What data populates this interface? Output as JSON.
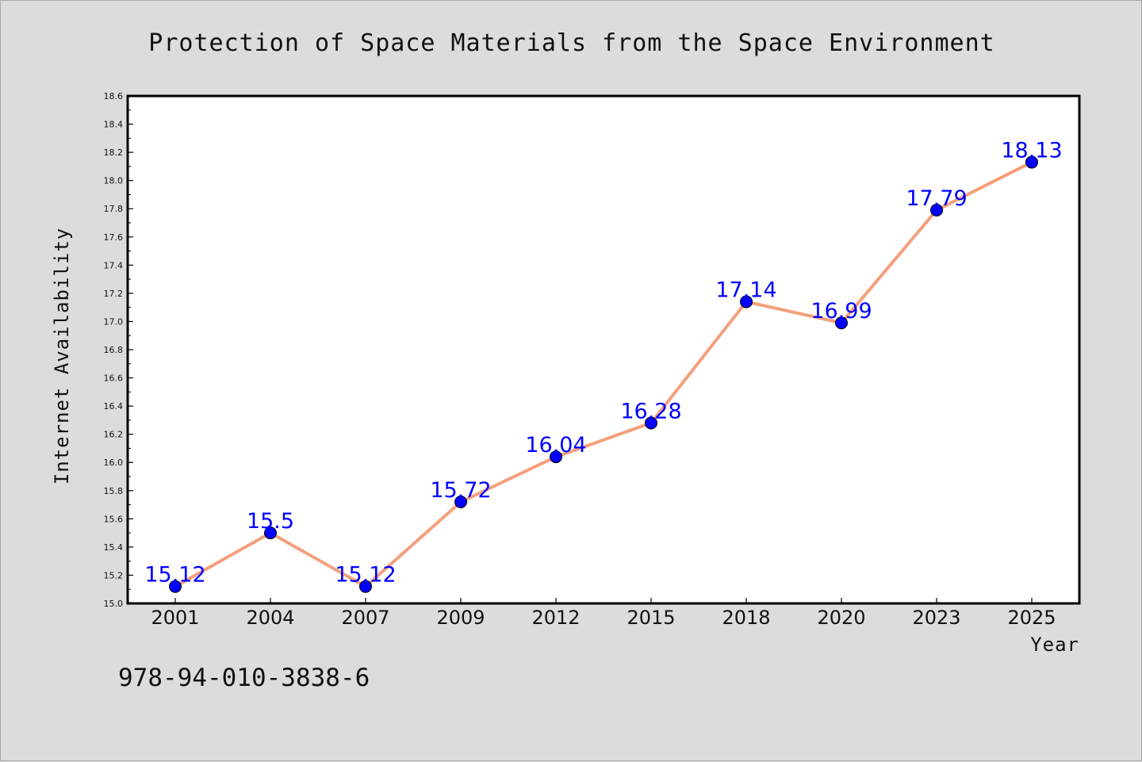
{
  "colors": {
    "background": "#dcdcdc",
    "plot_background": "#ffffff",
    "line": "#f4a07c",
    "marker": "#0000ff",
    "data_label": "#0000ff",
    "text": "#111111"
  },
  "footer": {
    "isbn": "978-94-010-3838-6"
  },
  "chart_data": {
    "type": "line",
    "title": "Protection of Space Materials from the Space Environment",
    "xlabel": "Year",
    "ylabel": "Internet Availability",
    "categories": [
      "2001",
      "2004",
      "2007",
      "2009",
      "2012",
      "2015",
      "2018",
      "2020",
      "2023",
      "2025"
    ],
    "series": [
      {
        "values": [
          15.12,
          15.5,
          15.12,
          15.72,
          16.04,
          16.28,
          17.14,
          16.99,
          17.79,
          18.13
        ]
      }
    ],
    "data_labels": [
      "15.12",
      "15.5",
      "15.12",
      "15.72",
      "16.04",
      "16.28",
      "17.14",
      "16.99",
      "17.79",
      "18.13"
    ],
    "ylim": [
      15.0,
      18.6
    ],
    "yticks": [
      "15.0",
      "15.2",
      "15.4",
      "15.6",
      "15.8",
      "16.0",
      "16.2",
      "16.4",
      "16.6",
      "16.8",
      "17.0",
      "17.2",
      "17.4",
      "17.6",
      "17.8",
      "18.0",
      "18.2",
      "18.4",
      "18.6"
    ],
    "grid": false,
    "legend": "none"
  }
}
